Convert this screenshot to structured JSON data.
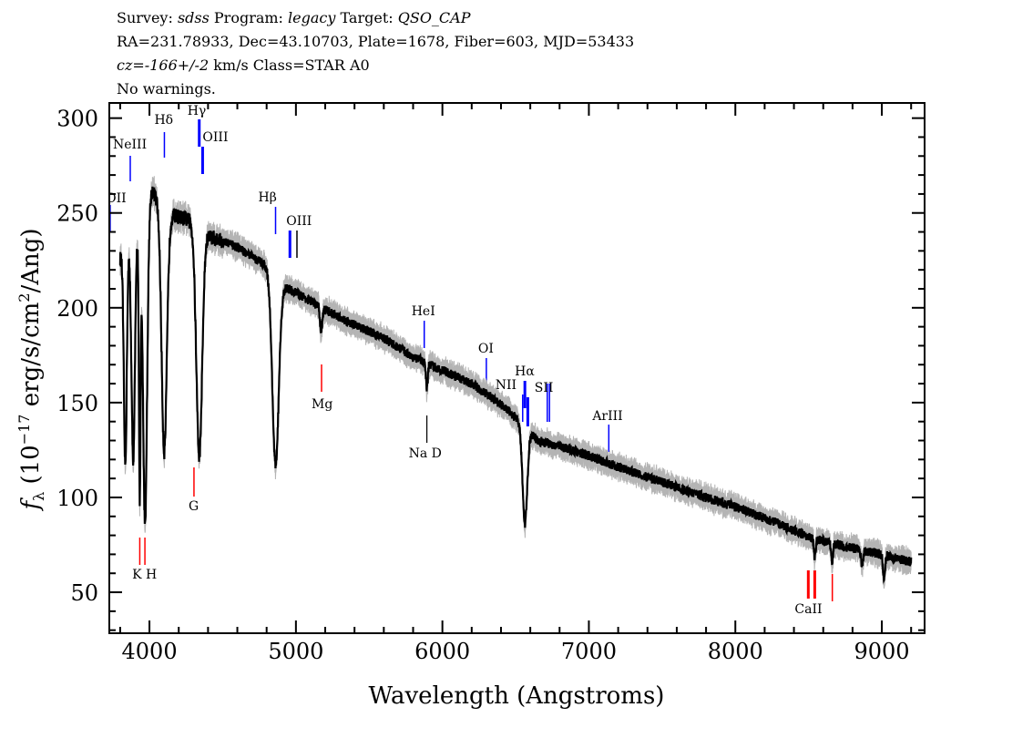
{
  "header": {
    "line1": {
      "survey_label": "Survey: ",
      "survey": "sdss",
      "program_label": " Program: ",
      "program": "legacy",
      "target_label": " Target: ",
      "target": "QSO_CAP"
    },
    "line2": "RA=231.78933, Dec=43.10703, Plate=1678, Fiber=603, MJD=53433",
    "line3": {
      "cz": "cz=-166+/-2",
      "rest": " km/s Class=STAR A0"
    },
    "line4": "No warnings."
  },
  "chart_data": {
    "type": "line",
    "xlabel": "Wavelength (Angstroms)",
    "ylabel": "f_λ (10^-17 erg/s/cm^2/Ang)",
    "ylabel_parts": {
      "f": "f",
      "sub": "λ",
      "pre": " (10",
      "exp1": "−17",
      "mid": " erg/s/cm",
      "exp2": "2",
      "post": "/Ang)"
    },
    "xlim": [
      3726,
      9292
    ],
    "ylim": [
      28.4,
      308
    ],
    "xticks": [
      4000,
      5000,
      6000,
      7000,
      8000,
      9000
    ],
    "yticks": [
      50,
      100,
      150,
      200,
      250,
      300
    ],
    "grid": false,
    "colors": {
      "flux": "#000000",
      "error": "#b4b4b4",
      "emission": "#0000ff",
      "absorption": "#ff0000"
    },
    "continuum": [
      [
        3800,
        226
      ],
      [
        3900,
        240
      ],
      [
        4020,
        262
      ],
      [
        4100,
        250
      ],
      [
        4200,
        248
      ],
      [
        4280,
        246
      ],
      [
        4400,
        238
      ],
      [
        4600,
        232
      ],
      [
        4800,
        222
      ],
      [
        4900,
        212
      ],
      [
        5000,
        208
      ],
      [
        5200,
        199
      ],
      [
        5400,
        191
      ],
      [
        5600,
        184
      ],
      [
        5800,
        174
      ],
      [
        6000,
        167
      ],
      [
        6200,
        160
      ],
      [
        6400,
        149
      ],
      [
        6500,
        142
      ],
      [
        6650,
        130
      ],
      [
        6800,
        127
      ],
      [
        7000,
        122
      ],
      [
        7200,
        116
      ],
      [
        7500,
        108
      ],
      [
        7800,
        100
      ],
      [
        8000,
        95
      ],
      [
        8300,
        86
      ],
      [
        8500,
        79
      ],
      [
        8700,
        75
      ],
      [
        9000,
        70
      ],
      [
        9200,
        66
      ]
    ],
    "absorption_features": [
      {
        "center": 3835,
        "min": 117,
        "width": 10
      },
      {
        "center": 3889,
        "min": 120,
        "width": 12
      },
      {
        "center": 3934,
        "min": 101,
        "width": 6
      },
      {
        "center": 3970,
        "min": 87,
        "width": 14
      },
      {
        "center": 4101,
        "min": 124,
        "width": 18
      },
      {
        "center": 4340,
        "min": 122,
        "width": 20
      },
      {
        "center": 4861,
        "min": 117,
        "width": 22
      },
      {
        "center": 5172,
        "min": 188,
        "width": 8
      },
      {
        "center": 5894,
        "min": 157,
        "width": 6
      },
      {
        "center": 6563,
        "min": 86,
        "width": 16
      },
      {
        "center": 8542,
        "min": 69,
        "width": 6
      },
      {
        "center": 8662,
        "min": 66,
        "width": 6
      },
      {
        "center": 8750,
        "min": 72,
        "width": 6
      },
      {
        "center": 8865,
        "min": 64,
        "width": 7
      },
      {
        "center": 9015,
        "min": 58,
        "width": 7
      }
    ],
    "line_markers": [
      {
        "name": "OII",
        "wavelength": 3727,
        "type": "emission"
      },
      {
        "name": "NeIII",
        "wavelength": 3869,
        "type": "emission"
      },
      {
        "name": "Hδ",
        "wavelength": 4102,
        "type": "emission"
      },
      {
        "name": "Hγ",
        "wavelength": 4340,
        "type": "emission"
      },
      {
        "name": "OIII",
        "wavelength": 4363,
        "type": "emission"
      },
      {
        "name": "Hβ",
        "wavelength": 4861,
        "type": "emission"
      },
      {
        "name": "OIII",
        "wavelength": 4959,
        "type": "emission"
      },
      {
        "name": "",
        "wavelength": 5007,
        "type": "emission"
      },
      {
        "name": "HeI",
        "wavelength": 5876,
        "type": "emission"
      },
      {
        "name": "OI",
        "wavelength": 6300,
        "type": "emission"
      },
      {
        "name": "NII",
        "wavelength": 6548,
        "type": "emission"
      },
      {
        "name": "Hα",
        "wavelength": 6563,
        "type": "emission"
      },
      {
        "name": "NII",
        "wavelength": 6583,
        "type": "emission"
      },
      {
        "name": "SII",
        "wavelength": 6716,
        "type": "emission"
      },
      {
        "name": "",
        "wavelength": 6731,
        "type": "emission"
      },
      {
        "name": "ArIII",
        "wavelength": 7136,
        "type": "emission"
      },
      {
        "name": "",
        "wavelength": 3934,
        "type": "absorption"
      },
      {
        "name": "K H",
        "wavelength": 3969,
        "type": "absorption"
      },
      {
        "name": "G",
        "wavelength": 4304,
        "type": "absorption"
      },
      {
        "name": "Mg",
        "wavelength": 5175,
        "type": "absorption"
      },
      {
        "name": "Na D",
        "wavelength": 5894,
        "type": "absorption"
      },
      {
        "name": "",
        "wavelength": 8498,
        "type": "absorption"
      },
      {
        "name": "CaII",
        "wavelength": 8542,
        "type": "absorption"
      },
      {
        "name": "",
        "wavelength": 8662,
        "type": "absorption"
      }
    ]
  }
}
